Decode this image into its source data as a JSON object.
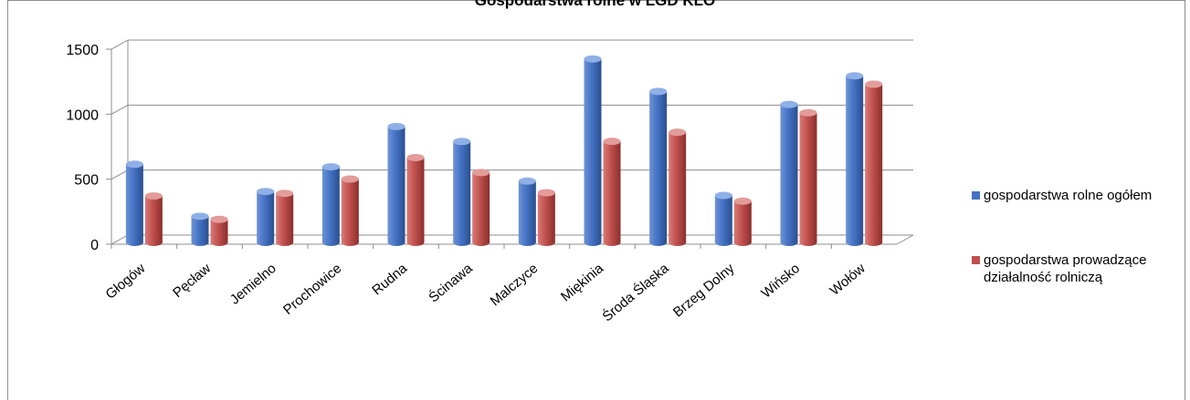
{
  "chart_data": {
    "type": "bar",
    "title": "Gospodarstwa rolne w LGD KLO",
    "categories": [
      "Głogów",
      "Pęcław",
      "Jemielno",
      "Prochowice",
      "Rudna",
      "Ścinawa",
      "Malczyce",
      "Miękinia",
      "Środa Śląska",
      "Brzeg Dolny",
      "Wińsko",
      "Wołów"
    ],
    "series": [
      {
        "name": "gospodarstwa rolne ogółem",
        "color": "#4472c4",
        "values": [
          580,
          180,
          370,
          560,
          870,
          755,
          450,
          1390,
          1140,
          340,
          1040,
          1260
        ]
      },
      {
        "name": "gospodarstwa prowadzące działalność rolniczą",
        "color": "#c0504d",
        "values": [
          350,
          170,
          370,
          480,
          645,
          530,
          375,
          770,
          840,
          310,
          990,
          1210
        ]
      }
    ],
    "yticks": [
      0,
      500,
      1000,
      1500
    ],
    "ylim": [
      0,
      1500
    ],
    "xlabel": "",
    "ylabel": "",
    "grid": true,
    "legend": "right"
  }
}
